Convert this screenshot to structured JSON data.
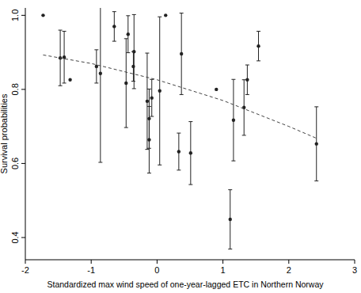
{
  "chart_data": {
    "type": "scatter",
    "x_label": "Standardized max wind speed of one-year-lagged ETC in Northern Norway",
    "y_label": "Survival probabilities",
    "xlim": [
      -2,
      3
    ],
    "ylim": [
      0.34,
      1.02
    ],
    "xticks": [
      -2,
      -1,
      0,
      1,
      2,
      3
    ],
    "yticks": [
      0.4,
      0.6,
      0.8,
      {
        "value": 1,
        "label": "1.0"
      }
    ],
    "grid": false,
    "series": [
      {
        "type": "scatter",
        "color": "#222222",
        "marker": "circle",
        "x": [
          -1.73,
          -1.47,
          -1.41,
          -1.32,
          -0.92,
          -0.86,
          -0.65,
          -0.47,
          -0.44,
          -0.36,
          -0.35,
          -0.15,
          -0.12,
          -0.12,
          -0.08,
          0.04,
          0.13,
          0.33,
          0.37,
          0.51,
          0.9,
          1.16,
          1.11,
          1.32,
          1.37,
          1.54,
          2.42
        ],
        "values": [
          1.0,
          0.885,
          0.887,
          0.826,
          0.862,
          0.843,
          0.97,
          0.817,
          0.949,
          0.862,
          0.902,
          0.768,
          0.721,
          0.664,
          0.777,
          0.796,
          1.0,
          0.632,
          0.896,
          0.628,
          0.8,
          0.717,
          0.449,
          0.751,
          0.826,
          0.917,
          0.653
        ],
        "errors": [
          0,
          0.075,
          0.07,
          0,
          0.045,
          0.24,
          0.04,
          0.12,
          0.05,
          0.04,
          0.1,
          0.13,
          0.08,
          0.09,
          0.05,
          0.2,
          0,
          0.05,
          0.11,
          0.085,
          0,
          0.11,
          0.08,
          0.075,
          0.04,
          0.04,
          0.1
        ]
      },
      {
        "type": "line",
        "color": "#444444",
        "line_style": "dashed",
        "x": [
          -1.73,
          -1,
          0,
          1,
          2,
          2.42
        ],
        "values": [
          0.893,
          0.87,
          0.826,
          0.77,
          0.7,
          0.668
        ]
      }
    ]
  }
}
